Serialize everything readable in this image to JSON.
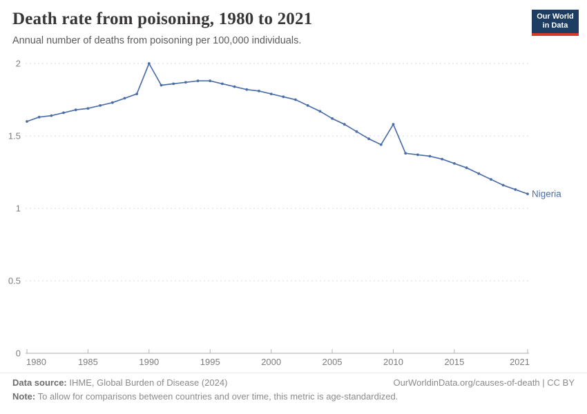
{
  "header": {
    "title": "Death rate from poisoning, 1980 to 2021",
    "subtitle": "Annual number of deaths from poisoning per 100,000 individuals.",
    "logo_line1": "Our World",
    "logo_line2": "in Data"
  },
  "chart_data": {
    "type": "line",
    "title": "Death rate from poisoning, 1980 to 2021",
    "ylabel": "Annual deaths from poisoning per 100,000 individuals",
    "x": [
      1980,
      1981,
      1982,
      1983,
      1984,
      1985,
      1986,
      1987,
      1988,
      1989,
      1990,
      1991,
      1992,
      1993,
      1994,
      1995,
      1996,
      1997,
      1998,
      1999,
      2000,
      2001,
      2002,
      2003,
      2004,
      2005,
      2006,
      2007,
      2008,
      2009,
      2010,
      2011,
      2012,
      2013,
      2014,
      2015,
      2016,
      2017,
      2018,
      2019,
      2020,
      2021
    ],
    "series": [
      {
        "name": "Nigeria",
        "values": [
          1.6,
          1.63,
          1.64,
          1.66,
          1.68,
          1.69,
          1.71,
          1.73,
          1.76,
          1.79,
          2.0,
          1.85,
          1.86,
          1.87,
          1.88,
          1.88,
          1.86,
          1.84,
          1.82,
          1.81,
          1.79,
          1.77,
          1.75,
          1.71,
          1.67,
          1.62,
          1.58,
          1.53,
          1.48,
          1.44,
          1.58,
          1.38,
          1.37,
          1.36,
          1.34,
          1.31,
          1.28,
          1.24,
          1.2,
          1.16,
          1.13,
          1.1
        ]
      }
    ],
    "entity_label": "Nigeria",
    "xlim": [
      1980,
      2021
    ],
    "ylim": [
      0,
      2
    ],
    "xticks": [
      1980,
      1985,
      1990,
      1995,
      2000,
      2005,
      2010,
      2015,
      2021
    ],
    "yticks": [
      0,
      0.5,
      1,
      1.5,
      2
    ],
    "grid": true,
    "legend_position": "end-of-line"
  },
  "colors": {
    "line": "#4c6ea8",
    "grid": "#d9d9d9",
    "axis": "#a9a9a9",
    "tick": "#b3b3b3",
    "tick_label": "#7d7d7d",
    "logo_blue": "#1d3d63",
    "logo_red": "#d33a2c"
  },
  "footer": {
    "datasource_label": "Data source:",
    "datasource_text": " IHME, Global Burden of Disease (2024)",
    "url_text": "OurWorldinData.org/causes-of-death | CC BY",
    "note_label": "Note:",
    "note_text": " To allow for comparisons between countries and over time, this metric is age-standardized."
  }
}
